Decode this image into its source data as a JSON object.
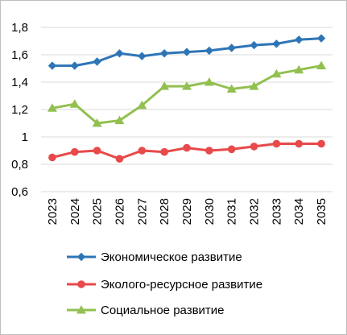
{
  "chart_data": {
    "type": "line",
    "categories": [
      "2023",
      "2024",
      "2025",
      "2026",
      "2027",
      "2028",
      "2029",
      "2030",
      "2031",
      "2032",
      "2033",
      "2034",
      "2035"
    ],
    "ylim": [
      0.6,
      1.8
    ],
    "yticks": [
      "0,6",
      "0,8",
      "1",
      "1,2",
      "1,4",
      "1,6",
      "1,8"
    ],
    "grid": "horizontal",
    "legend_position": "bottom",
    "series": [
      {
        "name": "Экономическое развитие",
        "color": "#2e75b6",
        "marker": "diamond",
        "values": [
          1.52,
          1.52,
          1.55,
          1.61,
          1.59,
          1.61,
          1.62,
          1.63,
          1.65,
          1.67,
          1.68,
          1.71,
          1.72
        ]
      },
      {
        "name": "Эколого-ресурсное развитие",
        "color": "#e8494a",
        "marker": "circle",
        "values": [
          0.85,
          0.89,
          0.9,
          0.84,
          0.9,
          0.89,
          0.92,
          0.9,
          0.91,
          0.93,
          0.95,
          0.95,
          0.95
        ]
      },
      {
        "name": "Социальное развитие",
        "color": "#92c050",
        "marker": "triangle",
        "values": [
          1.21,
          1.24,
          1.1,
          1.12,
          1.23,
          1.37,
          1.37,
          1.4,
          1.35,
          1.37,
          1.46,
          1.49,
          1.52
        ]
      }
    ]
  }
}
